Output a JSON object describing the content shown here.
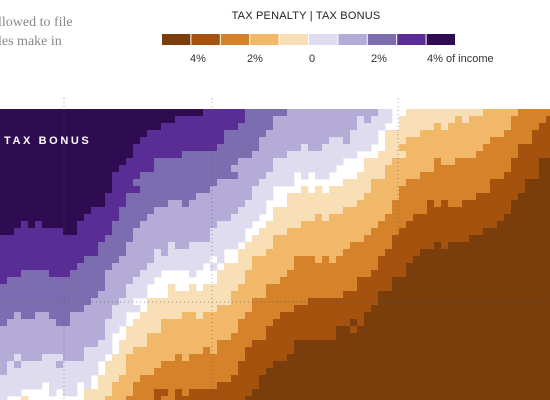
{
  "intro": {
    "line1": "llowed to file",
    "line2": "les make in"
  },
  "legend": {
    "title": "TAX PENALTY | TAX BONUS",
    "swatches": [
      {
        "name": "penalty-4plus",
        "color": "#7a3d0c"
      },
      {
        "name": "penalty-3",
        "color": "#a6520f"
      },
      {
        "name": "penalty-2",
        "color": "#d6822b"
      },
      {
        "name": "penalty-1",
        "color": "#f2b86a"
      },
      {
        "name": "penalty-0",
        "color": "#f8dfb5"
      },
      {
        "name": "bonus-0",
        "color": "#dedcee"
      },
      {
        "name": "bonus-1",
        "color": "#b4acd7"
      },
      {
        "name": "bonus-2",
        "color": "#7c6cb0"
      },
      {
        "name": "bonus-3",
        "color": "#5a2d96"
      },
      {
        "name": "bonus-4plus",
        "color": "#2f0b52"
      }
    ],
    "ticks": [
      "4%",
      "2%",
      "0",
      "2%",
      "4% of income"
    ]
  },
  "chart_data": {
    "type": "heatmap",
    "title": "TAX PENALTY | TAX BONUS",
    "region_labels": [
      "TAX BONUS"
    ],
    "color_scale": {
      "classes": [
        "4% penalty or more",
        "3% penalty",
        "2% penalty",
        "1% penalty",
        "0 to 0.5% penalty",
        "0 to 0.5% bonus",
        "1% bonus",
        "2% bonus",
        "3% bonus",
        "4% bonus or more"
      ],
      "ticks": [
        "4%",
        "2%",
        "0",
        "2%",
        "4% of income"
      ]
    },
    "grid": true,
    "description_of_pattern": "Bonus (purple) concentrated upper-left, penalty (orange) concentrated lower-right, neutral band along the diagonal"
  },
  "labels": {
    "bonus": "TAX BONUS"
  }
}
